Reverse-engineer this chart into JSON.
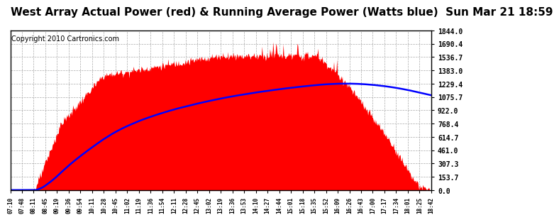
{
  "title": "West Array Actual Power (red) & Running Average Power (Watts blue)  Sun Mar 21 18:59",
  "copyright": "Copyright 2010 Cartronics.com",
  "ymin": 0.0,
  "ymax": 1844.0,
  "yticks": [
    0.0,
    153.7,
    307.3,
    461.0,
    614.7,
    768.4,
    922.0,
    1075.7,
    1229.4,
    1383.0,
    1536.7,
    1690.4,
    1844.0
  ],
  "xtick_labels": [
    "07:10",
    "07:48",
    "08:11",
    "08:45",
    "09:19",
    "09:36",
    "09:54",
    "10:11",
    "10:28",
    "10:45",
    "11:02",
    "11:19",
    "11:36",
    "11:54",
    "12:11",
    "12:28",
    "12:45",
    "13:02",
    "13:19",
    "13:36",
    "13:53",
    "14:10",
    "14:27",
    "14:44",
    "15:01",
    "15:18",
    "15:35",
    "15:52",
    "16:09",
    "16:26",
    "16:43",
    "17:00",
    "17:17",
    "17:34",
    "18:01",
    "18:25",
    "18:42"
  ],
  "bg_color": "#ffffff",
  "plot_bg_color": "#ffffff",
  "grid_color": "#aaaaaa",
  "actual_color": "#ff0000",
  "avg_color": "#0000ff",
  "title_fontsize": 11,
  "copyright_fontsize": 7
}
